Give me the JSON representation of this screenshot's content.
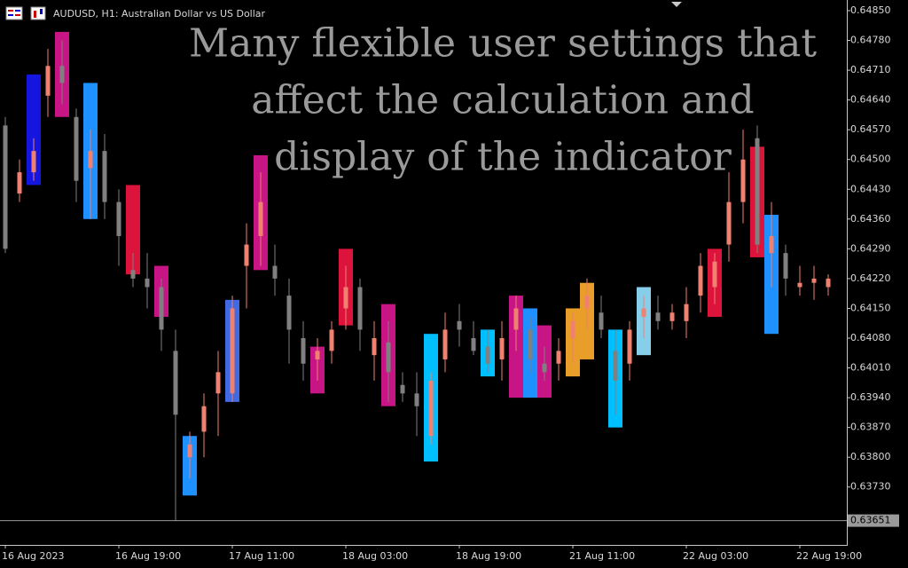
{
  "chart_data": {
    "type": "candlestick",
    "symbol_title": "AUDUSD, H1:  Australian Dollar vs US Dollar",
    "annotation_lines": [
      "Many flexible user settings that",
      "affect the calculation and",
      "display of the indicator"
    ],
    "categories": [
      "16 Aug 2023",
      null,
      null,
      null,
      null,
      null,
      null,
      null,
      "16 Aug 19:00",
      null,
      null,
      null,
      null,
      null,
      null,
      null,
      "17 Aug 11:00",
      null,
      null,
      null,
      null,
      null,
      null,
      null,
      "18 Aug 03:00",
      null,
      null,
      null,
      null,
      null,
      null,
      null,
      "18 Aug 19:00",
      null,
      null,
      null,
      null,
      null,
      null,
      null,
      "21 Aug 11:00",
      null,
      null,
      null,
      null,
      null,
      null,
      null,
      "22 Aug 03:00",
      null,
      null,
      null,
      null,
      null,
      null,
      null,
      "22 Aug 19:00",
      null,
      null
    ],
    "open": [
      0.6458,
      0.6442,
      0.6447,
      0.6465,
      0.6472,
      0.646,
      0.6448,
      0.6452,
      0.644,
      0.6424,
      0.6422,
      0.642,
      0.6405,
      0.638,
      0.6386,
      0.6395,
      0.6395,
      0.6425,
      0.6432,
      0.6425,
      0.6418,
      0.6408,
      0.6403,
      0.6405,
      0.6415,
      0.642,
      0.6404,
      0.6407,
      0.6397,
      0.6395,
      0.6385,
      0.6403,
      0.6412,
      0.6408,
      0.6406,
      0.6403,
      0.641,
      0.641,
      0.6402,
      0.6402,
      0.6408,
      0.6415,
      0.6414,
      0.6405,
      0.6402,
      0.6413,
      0.6414,
      0.6412,
      0.6412,
      0.6418,
      0.642,
      0.643,
      0.644,
      0.6455,
      0.6428,
      0.6428,
      0.642,
      0.6421,
      0.642
    ],
    "high": [
      0.646,
      0.645,
      0.6455,
      0.6476,
      0.6478,
      0.6462,
      0.6457,
      0.6456,
      0.6443,
      0.6428,
      0.6428,
      0.6422,
      0.641,
      0.6386,
      0.6395,
      0.6405,
      0.6418,
      0.6435,
      0.6447,
      0.643,
      0.6422,
      0.6412,
      0.6408,
      0.6412,
      0.6425,
      0.6422,
      0.6412,
      0.6412,
      0.64,
      0.64,
      0.64,
      0.6414,
      0.6416,
      0.6412,
      0.641,
      0.6412,
      0.6418,
      0.6413,
      0.6406,
      0.6408,
      0.6414,
      0.6422,
      0.6418,
      0.641,
      0.6412,
      0.6418,
      0.6418,
      0.6416,
      0.642,
      0.6428,
      0.6428,
      0.6447,
      0.6457,
      0.6458,
      0.644,
      0.643,
      0.6425,
      0.6425,
      0.6423
    ],
    "low": [
      0.6428,
      0.644,
      0.6445,
      0.646,
      0.6463,
      0.644,
      0.6436,
      0.6436,
      0.6425,
      0.642,
      0.6415,
      0.6405,
      0.6365,
      0.6375,
      0.638,
      0.6385,
      0.6393,
      0.6415,
      0.6425,
      0.6418,
      0.6402,
      0.6398,
      0.6398,
      0.6402,
      0.641,
      0.6405,
      0.6398,
      0.6393,
      0.6393,
      0.6385,
      0.6383,
      0.64,
      0.6406,
      0.6404,
      0.64,
      0.6398,
      0.6405,
      0.64,
      0.6398,
      0.6398,
      0.6402,
      0.641,
      0.6408,
      0.639,
      0.6398,
      0.6408,
      0.641,
      0.641,
      0.6408,
      0.6414,
      0.6416,
      0.6426,
      0.6435,
      0.6428,
      0.642,
      0.6418,
      0.6418,
      0.6417,
      0.6418
    ],
    "close": [
      0.6429,
      0.6447,
      0.6452,
      0.6472,
      0.6468,
      0.6445,
      0.6452,
      0.644,
      0.6432,
      0.6422,
      0.642,
      0.641,
      0.639,
      0.6383,
      0.6392,
      0.64,
      0.6415,
      0.643,
      0.644,
      0.6422,
      0.641,
      0.6402,
      0.6405,
      0.641,
      0.642,
      0.641,
      0.6408,
      0.64,
      0.6395,
      0.6392,
      0.6398,
      0.641,
      0.641,
      0.6405,
      0.6402,
      0.6408,
      0.6415,
      0.6403,
      0.64,
      0.6405,
      0.6412,
      0.6418,
      0.641,
      0.6398,
      0.641,
      0.6415,
      0.6412,
      0.6414,
      0.6416,
      0.6425,
      0.6426,
      0.644,
      0.645,
      0.643,
      0.6432,
      0.6422,
      0.6421,
      0.6422,
      0.6422
    ],
    "up_color": "#f08070",
    "down_color": "#808080",
    "zones": [
      {
        "bar": 2,
        "top": 0.647,
        "bottom": 0.6444,
        "color": "#1515e0"
      },
      {
        "bar": 4,
        "top": 0.648,
        "bottom": 0.646,
        "color": "#c71585"
      },
      {
        "bar": 6,
        "top": 0.6468,
        "bottom": 0.6436,
        "color": "#1e90ff"
      },
      {
        "bar": 9,
        "top": 0.6444,
        "bottom": 0.6423,
        "color": "#dc143c"
      },
      {
        "bar": 11,
        "top": 0.6425,
        "bottom": 0.6413,
        "color": "#c71585"
      },
      {
        "bar": 13,
        "top": 0.6385,
        "bottom": 0.6371,
        "color": "#1e90ff"
      },
      {
        "bar": 16,
        "top": 0.6417,
        "bottom": 0.6393,
        "color": "#4169e1"
      },
      {
        "bar": 18,
        "top": 0.6451,
        "bottom": 0.6424,
        "color": "#c71585"
      },
      {
        "bar": 22,
        "top": 0.6406,
        "bottom": 0.6395,
        "color": "#c71585"
      },
      {
        "bar": 24,
        "top": 0.6429,
        "bottom": 0.6411,
        "color": "#dc143c"
      },
      {
        "bar": 27,
        "top": 0.6416,
        "bottom": 0.6392,
        "color": "#c71585"
      },
      {
        "bar": 30,
        "top": 0.6409,
        "bottom": 0.6379,
        "color": "#00bfff"
      },
      {
        "bar": 34,
        "top": 0.641,
        "bottom": 0.6399,
        "color": "#00bfff"
      },
      {
        "bar": 36,
        "top": 0.6418,
        "bottom": 0.6394,
        "color": "#c71585"
      },
      {
        "bar": 37,
        "top": 0.6415,
        "bottom": 0.6394,
        "color": "#1e90ff"
      },
      {
        "bar": 38,
        "top": 0.6411,
        "bottom": 0.6394,
        "color": "#c71585"
      },
      {
        "bar": 40,
        "top": 0.6415,
        "bottom": 0.6399,
        "color": "#e89e28"
      },
      {
        "bar": 41,
        "top": 0.6421,
        "bottom": 0.6403,
        "color": "#e89e28"
      },
      {
        "bar": 43,
        "top": 0.641,
        "bottom": 0.6387,
        "color": "#00bfff"
      },
      {
        "bar": 45,
        "top": 0.642,
        "bottom": 0.6404,
        "color": "#87ceeb"
      },
      {
        "bar": 50,
        "top": 0.6429,
        "bottom": 0.6413,
        "color": "#dc143c"
      },
      {
        "bar": 53,
        "top": 0.6453,
        "bottom": 0.6427,
        "color": "#dc143c"
      },
      {
        "bar": 54,
        "top": 0.6437,
        "bottom": 0.6409,
        "color": "#1e90ff"
      }
    ],
    "ylim": [
      0.63598,
      0.64875
    ],
    "yticks": [
      {
        "value": 0.6485,
        "label": "0.64850"
      },
      {
        "value": 0.6478,
        "label": "0.64780"
      },
      {
        "value": 0.6471,
        "label": "0.64710"
      },
      {
        "value": 0.6464,
        "label": "0.64640"
      },
      {
        "value": 0.6457,
        "label": "0.64570"
      },
      {
        "value": 0.645,
        "label": "0.64500"
      },
      {
        "value": 0.6443,
        "label": "0.64430"
      },
      {
        "value": 0.6436,
        "label": "0.64360"
      },
      {
        "value": 0.6429,
        "label": "0.64290"
      },
      {
        "value": 0.6422,
        "label": "0.64220"
      },
      {
        "value": 0.6415,
        "label": "0.64150"
      },
      {
        "value": 0.6408,
        "label": "0.64080"
      },
      {
        "value": 0.6401,
        "label": "0.64010"
      },
      {
        "value": 0.6394,
        "label": "0.63940"
      },
      {
        "value": 0.6387,
        "label": "0.63870"
      },
      {
        "value": 0.638,
        "label": "0.63800"
      },
      {
        "value": 0.6373,
        "label": "0.63730"
      }
    ],
    "price_line": {
      "value": 0.63651,
      "label": "0.63651"
    }
  }
}
